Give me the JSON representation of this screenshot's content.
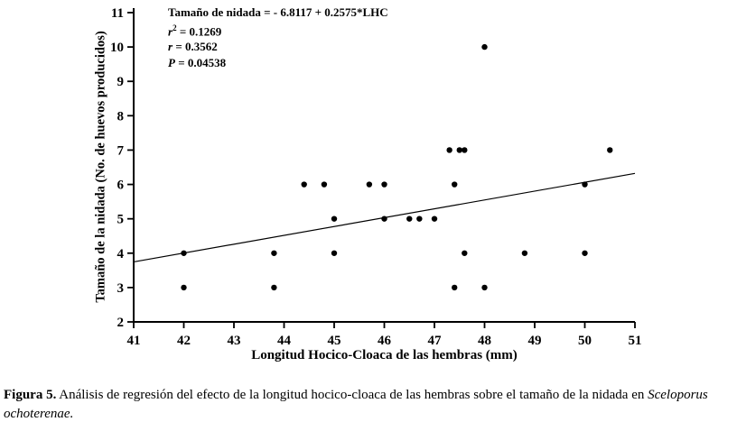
{
  "figure": {
    "caption_label": "Figura 5.",
    "caption_text": " Análisis de regresión del efecto de la longitud hocico-cloaca de las hembras  sobre el tamaño de la nidada en ",
    "caption_species": "Sceloporus ochoterenae."
  },
  "chart_data": {
    "type": "scatter",
    "title": "",
    "xlabel": "Longitud Hocico-Cloaca de las hembras (mm)",
    "ylabel": "Tamaño de la nidada (No. de huevos producidos)",
    "xlim": [
      41,
      51
    ],
    "ylim": [
      2,
      11
    ],
    "xticks": [
      41,
      42,
      43,
      44,
      45,
      46,
      47,
      48,
      49,
      50,
      51
    ],
    "yticks": [
      2,
      3,
      4,
      5,
      6,
      7,
      8,
      9,
      10,
      11
    ],
    "grid": false,
    "points": [
      [
        42,
        3
      ],
      [
        43.8,
        3
      ],
      [
        47.4,
        3
      ],
      [
        48,
        3
      ],
      [
        42,
        4
      ],
      [
        43.8,
        4
      ],
      [
        45,
        4
      ],
      [
        47.6,
        4
      ],
      [
        48.8,
        4
      ],
      [
        50,
        4
      ],
      [
        45,
        5
      ],
      [
        46,
        5
      ],
      [
        46.5,
        5
      ],
      [
        46.7,
        5
      ],
      [
        47,
        5
      ],
      [
        44.4,
        6
      ],
      [
        44.8,
        6
      ],
      [
        45.7,
        6
      ],
      [
        46,
        6
      ],
      [
        47.4,
        6
      ],
      [
        50,
        6
      ],
      [
        47.3,
        7
      ],
      [
        47.5,
        7
      ],
      [
        47.6,
        7
      ],
      [
        50.5,
        7
      ],
      [
        48,
        10
      ]
    ],
    "regression": {
      "intercept": -6.8117,
      "slope": 0.2575
    },
    "annotation": {
      "equation": "Tamaño de nidada = - 6.8117 + 0.2575*LHC",
      "r2_var": "r",
      "r2_sup": "2",
      "r2_val": " = 0.1269",
      "r_var": "r",
      "r_val": " = 0.3562",
      "p_var": "P",
      "p_val": " = 0.04538"
    },
    "point_color": "#000000",
    "line_color": "#000000",
    "axis_color": "#000000"
  }
}
